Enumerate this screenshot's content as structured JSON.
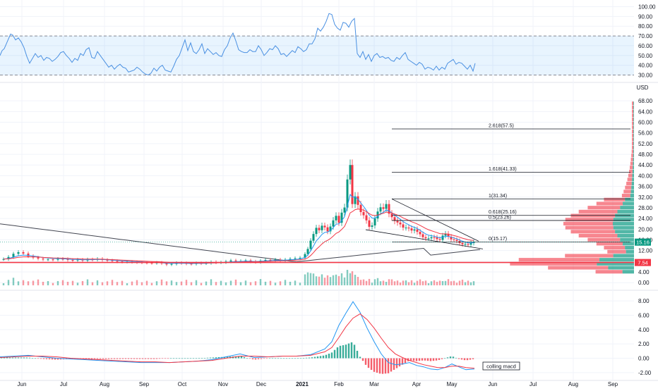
{
  "chart_data": [
    {
      "type": "line",
      "name_role": "rsi",
      "ticks": [
        "100.00",
        "90.00",
        "80.00",
        "70.00",
        "60.00",
        "50.00",
        "40.00",
        "30.00"
      ],
      "tick_values": [
        100,
        90,
        80,
        70,
        60,
        50,
        40,
        30
      ],
      "ylim": [
        26,
        104
      ],
      "band": [
        30,
        70
      ],
      "x": [
        0,
        3,
        6,
        9,
        12,
        15,
        18,
        22,
        26,
        30,
        34,
        38,
        42,
        46,
        50,
        54,
        58,
        62,
        66,
        70,
        74,
        78,
        82,
        86,
        90,
        94,
        98,
        102,
        106,
        110,
        114,
        118,
        122,
        126,
        130,
        134,
        138,
        142,
        146,
        150,
        154,
        158,
        162,
        166,
        170,
        174,
        178,
        182,
        186,
        190,
        194,
        198,
        202,
        206,
        210,
        214,
        218,
        222,
        226,
        230,
        234,
        238,
        242,
        246,
        250,
        254,
        258,
        262,
        266,
        270,
        274,
        278,
        282,
        286,
        290,
        294,
        298,
        302,
        306,
        310,
        314,
        318,
        322,
        326,
        330,
        334,
        338,
        342,
        346,
        350,
        354,
        358,
        362,
        366,
        370,
        374,
        378,
        382,
        386,
        390,
        394,
        398,
        402,
        406,
        410,
        414,
        418,
        422,
        426,
        430,
        434,
        438,
        442,
        446,
        450,
        454,
        458,
        462,
        466,
        470,
        474,
        478,
        482,
        486,
        490,
        494,
        498,
        502,
        506,
        510,
        514,
        518,
        522,
        526,
        530,
        534,
        538,
        542,
        546,
        550,
        554,
        558,
        562,
        566,
        570,
        574,
        578,
        582,
        586,
        590,
        594,
        598,
        602,
        606,
        610,
        614,
        618,
        622,
        626,
        630,
        634,
        638,
        642,
        646,
        650,
        654,
        658,
        662,
        666,
        670,
        673
      ],
      "values": [
        50,
        55,
        57,
        62,
        67,
        72,
        71,
        66,
        68,
        64,
        58,
        49,
        42,
        47,
        52,
        48,
        50,
        45,
        48,
        47,
        44,
        46,
        49,
        53,
        54,
        50,
        47,
        43,
        47,
        45,
        52,
        50,
        56,
        58,
        48,
        47,
        54,
        50,
        46,
        42,
        38,
        40,
        36,
        39,
        41,
        38,
        37,
        33,
        34,
        35,
        38,
        36,
        33,
        31,
        30,
        32,
        37,
        34,
        38,
        40,
        35,
        34,
        33,
        39,
        46,
        50,
        58,
        66,
        55,
        63,
        54,
        52,
        56,
        62,
        52,
        57,
        54,
        51,
        53,
        50,
        49,
        56,
        60,
        68,
        73,
        65,
        56,
        54,
        53,
        53,
        56,
        54,
        54,
        60,
        56,
        50,
        53,
        57,
        56,
        60,
        57,
        51,
        52,
        49,
        52,
        55,
        53,
        59,
        57,
        54,
        56,
        62,
        62,
        67,
        78,
        75,
        79,
        85,
        93,
        92,
        82,
        78,
        76,
        84,
        83,
        79,
        85,
        88,
        52,
        48,
        54,
        46,
        51,
        44,
        50,
        52,
        48,
        49,
        47,
        48,
        45,
        44,
        48,
        46,
        50,
        53,
        46,
        44,
        42,
        40,
        43,
        41,
        36,
        38,
        37,
        35,
        39,
        35,
        38,
        36,
        42,
        44,
        46,
        41,
        43,
        42,
        39,
        36,
        40,
        34,
        42
      ]
    },
    {
      "type": "candlestick",
      "name_role": "price",
      "unit_label": "USD",
      "ticks": [
        "68.00",
        "64.00",
        "60.00",
        "56.00",
        "52.00",
        "48.00",
        "44.00",
        "40.00",
        "36.00",
        "32.00",
        "28.00",
        "24.00",
        "20.00",
        "16.00",
        "12.00",
        "8.00",
        "4.00",
        "0.00"
      ],
      "tick_values": [
        68,
        64,
        60,
        56,
        52,
        48,
        44,
        40,
        36,
        32,
        28,
        24,
        20,
        16,
        12,
        8,
        4,
        0
      ],
      "ylim": [
        -1,
        72
      ],
      "last_price_label": "15.16",
      "last_price": 15.16,
      "red_level_label": "7.54",
      "red_level": 7.54,
      "x_dates": [
        "Jun",
        "Jul",
        "Aug",
        "Sep",
        "Oct",
        "Nov",
        "Dec",
        "2021",
        "Feb",
        "Mar",
        "Apr",
        "May",
        "Jun",
        "Jul",
        "Aug",
        "Sep"
      ],
      "x_date_pos": [
        31,
        90,
        148,
        204,
        258,
        316,
        370,
        428,
        480,
        530,
        590,
        640,
        698,
        755,
        812,
        868
      ],
      "fibonacci": [
        {
          "label": "2.618(57.5)",
          "price": 57.5
        },
        {
          "label": "1.618(41.33)",
          "price": 41.33
        },
        {
          "label": "1(31.34)",
          "price": 31.34
        },
        {
          "label": "0.618(25.16)",
          "price": 25.16
        },
        {
          "label": "0.5(23.26)",
          "price": 23.26
        },
        {
          "label": "0(15.17)",
          "price": 15.17
        }
      ],
      "candle_x": [
        5,
        12,
        19,
        26,
        33,
        40,
        47,
        54,
        61,
        68,
        75,
        82,
        89,
        96,
        103,
        110,
        117,
        124,
        131,
        138,
        145,
        152,
        159,
        166,
        173,
        180,
        187,
        194,
        201,
        208,
        215,
        222,
        229,
        236,
        243,
        250,
        257,
        264,
        271,
        278,
        285,
        292,
        299,
        306,
        313,
        320,
        327,
        334,
        341,
        348,
        355,
        362,
        369,
        376,
        383,
        390,
        397,
        404,
        411,
        418,
        425,
        432,
        436,
        440,
        444,
        448,
        452,
        456,
        460,
        464,
        468,
        472,
        476,
        480,
        484,
        488,
        492,
        496,
        499,
        503,
        507,
        511,
        515,
        519,
        523,
        527,
        531,
        535,
        539,
        543,
        547,
        551,
        555,
        559,
        563,
        567,
        571,
        575,
        579,
        583,
        587,
        591,
        595,
        599,
        603,
        607,
        611,
        615,
        619,
        623,
        627,
        631,
        635,
        639,
        643,
        647,
        651,
        655,
        659,
        663,
        667,
        671
      ],
      "candle_close": [
        8.8,
        9.6,
        10.8,
        11.4,
        10.9,
        9.9,
        9.4,
        9.0,
        8.7,
        8.7,
        8.6,
        8.9,
        8.8,
        8.5,
        8.4,
        8.6,
        8.3,
        8.7,
        8.6,
        8.9,
        8.5,
        8.3,
        8.1,
        7.9,
        7.8,
        7.8,
        7.7,
        7.6,
        7.5,
        7.4,
        7.3,
        7.5,
        7.2,
        6.8,
        7.0,
        7.4,
        7.3,
        7.1,
        7.0,
        7.3,
        7.2,
        7.3,
        7.7,
        7.5,
        7.6,
        7.9,
        8.3,
        8.0,
        8.1,
        8.3,
        7.9,
        7.7,
        8.2,
        8.5,
        8.4,
        8.6,
        8.4,
        8.6,
        8.9,
        9.1,
        9.3,
        10.7,
        12.6,
        15.7,
        18.2,
        20.5,
        19.6,
        21.3,
        20.7,
        19.2,
        21.0,
        23.3,
        25.0,
        22.4,
        26.2,
        28.1,
        38.6,
        44.0,
        29.4,
        32.3,
        29.1,
        26.4,
        25.2,
        23.3,
        20.9,
        21.4,
        24.0,
        26.6,
        28.2,
        27.6,
        29.4,
        25.8,
        24.5,
        23.1,
        22.5,
        21.8,
        20.6,
        20.6,
        20.3,
        19.5,
        19.9,
        19.0,
        18.1,
        17.0,
        16.6,
        16.6,
        17.0,
        16.9,
        16.3,
        16.0,
        17.6,
        18.3,
        17.2,
        16.2,
        16.0,
        15.6,
        14.8,
        14.3,
        14.5,
        14.2,
        14.8,
        15.2
      ]
    },
    {
      "type": "line",
      "name_role": "macd",
      "ticks": [
        "8.00",
        "6.00",
        "4.00",
        "2.00",
        "0.00",
        "-2.00"
      ],
      "tick_values": [
        8,
        6,
        4,
        2,
        0,
        -2
      ],
      "ylim": [
        -2.9,
        8.9
      ],
      "annotation": "colling macd",
      "x": [
        0,
        20,
        40,
        60,
        80,
        100,
        120,
        140,
        160,
        180,
        200,
        220,
        240,
        260,
        280,
        300,
        320,
        340,
        360,
        380,
        400,
        420,
        440,
        460,
        470,
        480,
        490,
        500,
        510,
        520,
        530,
        540,
        550,
        560,
        570,
        580,
        590,
        600,
        610,
        620,
        630,
        640,
        650,
        660,
        672
      ],
      "series": [
        {
          "values": [
            0.2,
            0.3,
            0.4,
            0.2,
            0.0,
            -0.1,
            -0.2,
            -0.3,
            -0.4,
            -0.5,
            -0.6,
            -0.6,
            -0.6,
            -0.5,
            -0.4,
            -0.2,
            0.2,
            0.6,
            0.1,
            0.2,
            0.3,
            0.3,
            0.5,
            1.3,
            2.3,
            4.6,
            6.3,
            7.9,
            6.4,
            4.2,
            2.3,
            0.6,
            -0.6,
            -0.9,
            -0.8,
            -0.6,
            -1.0,
            -1.2,
            -1.5,
            -1.6,
            -1.3,
            -0.8,
            -1.2,
            -1.6,
            -1.5
          ]
        },
        {
          "values": [
            0.1,
            0.2,
            0.3,
            0.3,
            0.2,
            0.0,
            -0.1,
            -0.2,
            -0.3,
            -0.4,
            -0.5,
            -0.5,
            -0.6,
            -0.5,
            -0.4,
            -0.3,
            0.0,
            0.3,
            0.3,
            0.2,
            0.3,
            0.3,
            0.4,
            0.9,
            1.5,
            2.9,
            4.4,
            5.6,
            6.2,
            5.4,
            4.2,
            2.8,
            1.5,
            0.6,
            0.1,
            -0.3,
            -0.6,
            -0.9,
            -1.1,
            -1.3,
            -1.3,
            -1.1,
            -1.1,
            -1.3,
            -1.4
          ]
        }
      ]
    }
  ]
}
